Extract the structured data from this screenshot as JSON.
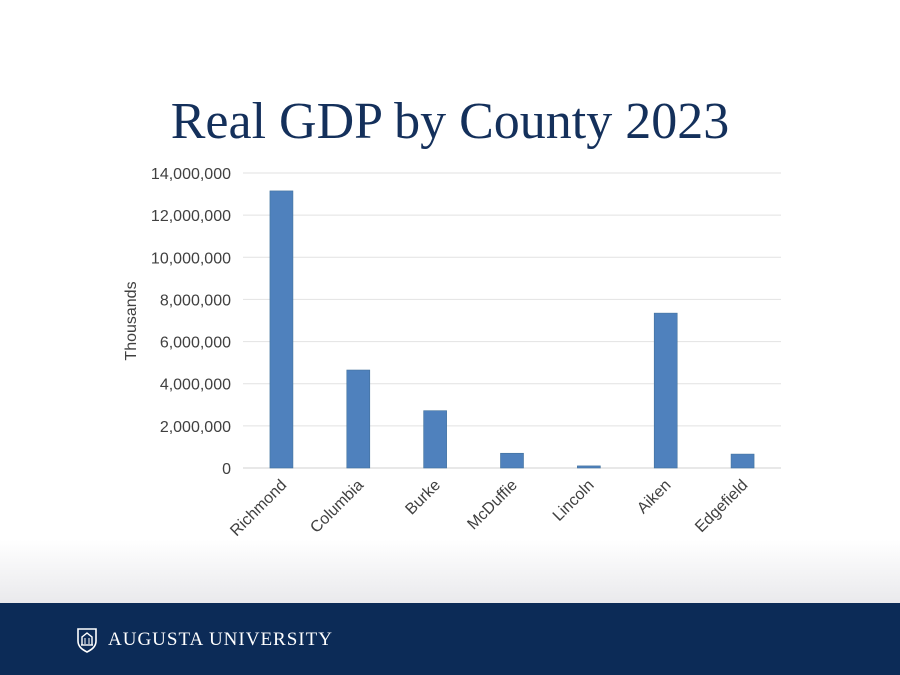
{
  "slide": {
    "title": "Real GDP by County 2023"
  },
  "footer": {
    "brand_text": "AUGUSTA UNIVERSITY",
    "logo_icon": "augusta-university-shield-icon"
  },
  "chart_data": {
    "type": "bar",
    "title": "",
    "xlabel": "",
    "ylabel": "Thousands",
    "categories": [
      "Richmond",
      "Columbia",
      "Burke",
      "McDuffie",
      "Lincoln",
      "Aiken",
      "Edgefield"
    ],
    "values": [
      13150000,
      4650000,
      2720000,
      700000,
      100000,
      7350000,
      660000
    ],
    "ylim": [
      0,
      14000000
    ],
    "yticks": [
      0,
      2000000,
      4000000,
      6000000,
      8000000,
      10000000,
      12000000,
      14000000
    ],
    "ytick_labels": [
      "0",
      "2,000,000",
      "4,000,000",
      "6,000,000",
      "8,000,000",
      "10,000,000",
      "12,000,000",
      "14,000,000"
    ],
    "grid": true,
    "legend": "none",
    "bar_color": "#4f81bd"
  }
}
